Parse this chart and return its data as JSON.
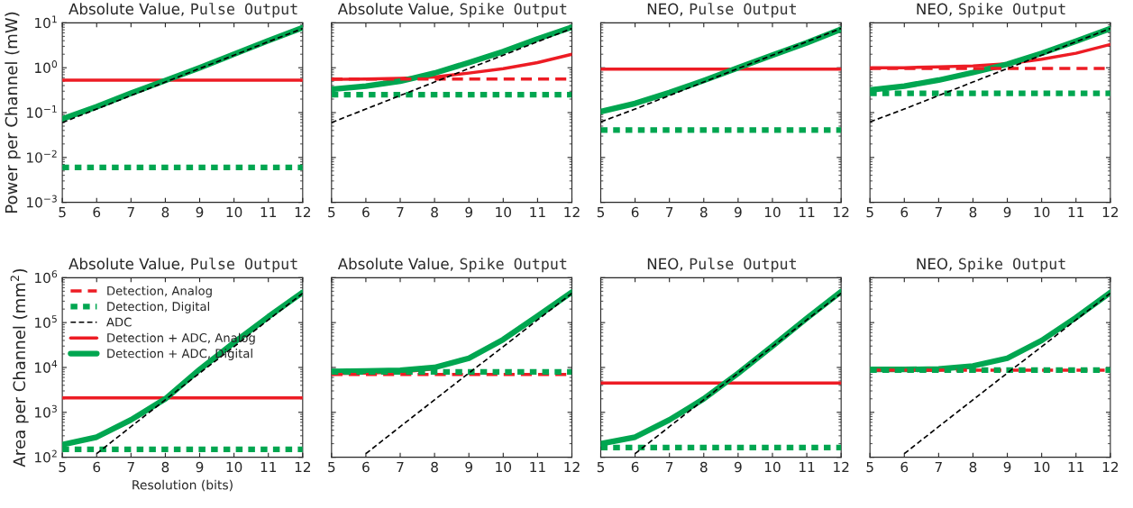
{
  "chart_data": [
    {
      "type": "line",
      "title": "Absolute Value,",
      "subtitle": "Pulse Output",
      "ylabel": "Power per Channel (mW)",
      "x": [
        5,
        6,
        7,
        8,
        9,
        10,
        11,
        12
      ],
      "log": "y",
      "xlim": [
        5,
        12
      ],
      "xticks": [
        5,
        6,
        7,
        8,
        9,
        10,
        11,
        12
      ],
      "ylim": [
        0.001,
        10
      ],
      "yticks": [
        {
          "value": 0.001,
          "label": "10$^{−3}$"
        },
        {
          "value": 0.01,
          "label": "10$^{−2}$"
        },
        {
          "value": 0.1,
          "label": "10$^{−1}$"
        },
        {
          "value": 1,
          "label": "10$^{0}$"
        },
        {
          "value": 10,
          "label": "10$^{1}$"
        }
      ],
      "legend": false,
      "series": [
        {
          "color": "#ed1c24",
          "line_style": "dashed",
          "values": [
            null,
            null,
            null,
            null,
            null,
            null,
            null,
            null
          ]
        },
        {
          "color": "#00a650",
          "line_style": "dotted",
          "values": [
            0.006,
            0.006,
            0.006,
            0.006,
            0.006,
            0.006,
            0.006,
            0.006
          ]
        },
        {
          "color": "#000000",
          "line_style": "dashed",
          "values": [
            0.06,
            0.12,
            0.24,
            0.48,
            0.96,
            1.9,
            3.8,
            7.5
          ]
        },
        {
          "color": "#ed1c24",
          "line_style": "solid",
          "values": [
            0.53,
            0.53,
            0.53,
            0.53,
            0.53,
            0.53,
            0.53,
            0.53
          ]
        },
        {
          "color": "#00a650",
          "line_style": "solid",
          "values": [
            0.072,
            0.135,
            0.27,
            0.52,
            1.0,
            2.0,
            4.0,
            7.8
          ]
        }
      ]
    },
    {
      "type": "line",
      "title": "Absolute Value,",
      "subtitle": "Spike Output",
      "x": [
        5,
        6,
        7,
        8,
        9,
        10,
        11,
        12
      ],
      "log": "y",
      "xlim": [
        5,
        12
      ],
      "xticks": [
        5,
        6,
        7,
        8,
        9,
        10,
        11,
        12
      ],
      "ylim": [
        0.001,
        10
      ],
      "yticks": [
        0.001,
        0.01,
        0.1,
        1,
        10
      ],
      "tick_labels": "x",
      "legend": false,
      "series": [
        {
          "color": "#ed1c24",
          "line_style": "dashed",
          "values": [
            0.56,
            0.56,
            0.56,
            0.56,
            0.56,
            0.56,
            0.56,
            0.56
          ]
        },
        {
          "color": "#00a650",
          "line_style": "dotted",
          "values": [
            0.25,
            0.25,
            0.25,
            0.25,
            0.25,
            0.25,
            0.25,
            0.25
          ]
        },
        {
          "color": "#000000",
          "line_style": "dashed",
          "values": [
            0.06,
            0.12,
            0.24,
            0.48,
            0.96,
            1.9,
            3.8,
            7.5
          ]
        },
        {
          "color": "#ed1c24",
          "line_style": "solid",
          "values": [
            0.55,
            0.56,
            0.58,
            0.62,
            0.76,
            0.95,
            1.3,
            2.0
          ]
        },
        {
          "color": "#00a650",
          "line_style": "solid",
          "values": [
            0.33,
            0.39,
            0.5,
            0.76,
            1.3,
            2.3,
            4.4,
            8.0
          ]
        }
      ]
    },
    {
      "type": "line",
      "title": "NEO,",
      "subtitle": "Pulse Output",
      "x": [
        5,
        6,
        7,
        8,
        9,
        10,
        11,
        12
      ],
      "log": "y",
      "xlim": [
        5,
        12
      ],
      "xticks": [
        5,
        6,
        7,
        8,
        9,
        10,
        11,
        12
      ],
      "ylim": [
        0.001,
        10
      ],
      "yticks": [
        0.001,
        0.01,
        0.1,
        1,
        10
      ],
      "tick_labels": "x",
      "legend": false,
      "series": [
        {
          "color": "#ed1c24",
          "line_style": "dashed",
          "values": [
            null,
            null,
            null,
            null,
            null,
            null,
            null,
            null
          ]
        },
        {
          "color": "#00a650",
          "line_style": "dotted",
          "values": [
            0.041,
            0.041,
            0.041,
            0.041,
            0.041,
            0.041,
            0.041,
            0.041
          ]
        },
        {
          "color": "#000000",
          "line_style": "dashed",
          "values": [
            0.062,
            0.12,
            0.24,
            0.48,
            0.96,
            1.9,
            3.8,
            7.5
          ]
        },
        {
          "color": "#ed1c24",
          "line_style": "solid",
          "values": [
            0.93,
            0.93,
            0.93,
            0.93,
            0.93,
            0.93,
            0.93,
            0.93
          ]
        },
        {
          "color": "#00a650",
          "line_style": "solid",
          "values": [
            0.105,
            0.16,
            0.28,
            0.52,
            1.0,
            1.9,
            3.6,
            7.2
          ]
        }
      ]
    },
    {
      "type": "line",
      "title": "NEO,",
      "subtitle": "Spike Output",
      "x": [
        5,
        6,
        7,
        8,
        9,
        10,
        11,
        12
      ],
      "log": "y",
      "xlim": [
        5,
        12
      ],
      "xticks": [
        5,
        6,
        7,
        8,
        9,
        10,
        11,
        12
      ],
      "ylim": [
        0.001,
        10
      ],
      "yticks": [
        0.001,
        0.01,
        0.1,
        1,
        10
      ],
      "tick_labels": "x",
      "legend": false,
      "series": [
        {
          "color": "#ed1c24",
          "line_style": "dashed",
          "values": [
            0.96,
            0.96,
            0.96,
            0.96,
            0.96,
            0.96,
            0.96,
            0.96
          ]
        },
        {
          "color": "#00a650",
          "line_style": "dotted",
          "values": [
            0.27,
            0.27,
            0.27,
            0.27,
            0.27,
            0.27,
            0.27,
            0.27
          ]
        },
        {
          "color": "#000000",
          "line_style": "dashed",
          "values": [
            0.062,
            0.12,
            0.24,
            0.48,
            0.96,
            1.9,
            3.8,
            7.5
          ]
        },
        {
          "color": "#ed1c24",
          "line_style": "solid",
          "values": [
            1.0,
            1.0,
            1.05,
            1.1,
            1.23,
            1.55,
            2.1,
            3.3
          ]
        },
        {
          "color": "#00a650",
          "line_style": "solid",
          "values": [
            0.32,
            0.39,
            0.53,
            0.78,
            1.2,
            2.1,
            3.9,
            7.5
          ]
        }
      ]
    },
    {
      "type": "line",
      "title": "Absolute Value,",
      "subtitle": "Pulse Output",
      "xlabel": "Resolution (bits)",
      "ylabel": "Area per Channel (mm$^{2}$)",
      "x": [
        5,
        6,
        7,
        8,
        9,
        10,
        11,
        12
      ],
      "log": "y",
      "xlim": [
        5,
        12
      ],
      "xticks": [
        5,
        6,
        7,
        8,
        9,
        10,
        11,
        12
      ],
      "ylim": [
        100,
        1000000
      ],
      "yticks": [
        {
          "value": 100,
          "label": "10$^{2}$"
        },
        {
          "value": 1000,
          "label": "10$^{3}$"
        },
        {
          "value": 10000,
          "label": "10$^{4}$"
        },
        {
          "value": 100000,
          "label": "10$^{5}$"
        },
        {
          "value": 1000000,
          "label": "10$^{6}$"
        }
      ],
      "legend": "top left",
      "series": [
        {
          "name": "Detection, Analog",
          "color": "#ed1c24",
          "line_style": "dashed",
          "values": [
            null,
            null,
            null,
            null,
            null,
            null,
            null,
            null
          ]
        },
        {
          "name": "Detection, Digital",
          "color": "#00a650",
          "line_style": "dotted",
          "values": [
            150,
            150,
            150,
            150,
            150,
            150,
            150,
            150
          ]
        },
        {
          "name": "ADC",
          "color": "#000000",
          "line_style": "dashed",
          "x": [
            6,
            7,
            8,
            9,
            10,
            11,
            12
          ],
          "values": [
            120,
            480,
            1900,
            7500,
            29000,
            115000,
            450000
          ]
        },
        {
          "name": "Detection + ADC, Analog",
          "color": "#ed1c24",
          "line_style": "solid",
          "values": [
            2100,
            2100,
            2100,
            2100,
            2100,
            2100,
            2100,
            2100
          ]
        },
        {
          "name": "Detection + ADC, Digital",
          "color": "#00a650",
          "line_style": "solid",
          "values": [
            190,
            280,
            680,
            2000,
            9000,
            36000,
            135000,
            470000
          ]
        }
      ]
    },
    {
      "type": "line",
      "title": "Absolute Value,",
      "subtitle": "Spike Output",
      "x": [
        5,
        6,
        7,
        8,
        9,
        10,
        11,
        12
      ],
      "log": "y",
      "xlim": [
        5,
        12
      ],
      "xticks": [
        5,
        6,
        7,
        8,
        9,
        10,
        11,
        12
      ],
      "ylim": [
        100,
        1000000
      ],
      "yticks": [
        100,
        1000,
        10000,
        100000,
        1000000
      ],
      "tick_labels": "x",
      "legend": false,
      "series": [
        {
          "color": "#ed1c24",
          "line_style": "dashed",
          "values": [
            7000,
            7000,
            7000,
            7000,
            7000,
            7000,
            7000,
            7000
          ]
        },
        {
          "color": "#00a650",
          "line_style": "dotted",
          "values": [
            8000,
            8000,
            8000,
            8000,
            8000,
            8000,
            8000,
            8000
          ]
        },
        {
          "color": "#000000",
          "line_style": "dashed",
          "x": [
            6,
            7,
            8,
            9,
            10,
            11,
            12
          ],
          "values": [
            120,
            480,
            1900,
            7500,
            29000,
            115000,
            450000
          ]
        },
        {
          "color": "#ed1c24",
          "line_style": "solid",
          "values": [
            7300,
            7500,
            7900,
            9300,
            null,
            null,
            null,
            null
          ]
        },
        {
          "color": "#00a650",
          "line_style": "solid",
          "values": [
            8200,
            8300,
            8600,
            10000,
            16000,
            42000,
            140000,
            480000
          ]
        }
      ]
    },
    {
      "type": "line",
      "title": "NEO,",
      "subtitle": "Pulse Output",
      "x": [
        5,
        6,
        7,
        8,
        9,
        10,
        11,
        12
      ],
      "log": "y",
      "xlim": [
        5,
        12
      ],
      "xticks": [
        5,
        6,
        7,
        8,
        9,
        10,
        11,
        12
      ],
      "ylim": [
        100,
        1000000
      ],
      "yticks": [
        100,
        1000,
        10000,
        100000,
        1000000
      ],
      "tick_labels": "x",
      "legend": false,
      "series": [
        {
          "color": "#ed1c24",
          "line_style": "dashed",
          "values": [
            null,
            null,
            null,
            null,
            null,
            null,
            null,
            null
          ]
        },
        {
          "color": "#00a650",
          "line_style": "dotted",
          "values": [
            165,
            165,
            165,
            165,
            165,
            165,
            165,
            165
          ]
        },
        {
          "color": "#000000",
          "line_style": "dashed",
          "x": [
            6,
            7,
            8,
            9,
            10,
            11,
            12
          ],
          "values": [
            120,
            480,
            1900,
            7500,
            29000,
            115000,
            450000
          ]
        },
        {
          "color": "#ed1c24",
          "line_style": "solid",
          "values": [
            4500,
            4500,
            4500,
            4500,
            4500,
            4500,
            4500,
            4500
          ]
        },
        {
          "color": "#00a650",
          "line_style": "solid",
          "values": [
            200,
            280,
            680,
            2000,
            7400,
            30000,
            125000,
            490000
          ]
        }
      ]
    },
    {
      "type": "line",
      "title": "NEO,",
      "subtitle": "Spike Output",
      "x": [
        5,
        6,
        7,
        8,
        9,
        10,
        11,
        12
      ],
      "log": "y",
      "xlim": [
        5,
        12
      ],
      "xticks": [
        5,
        6,
        7,
        8,
        9,
        10,
        11,
        12
      ],
      "ylim": [
        100,
        1000000
      ],
      "yticks": [
        100,
        1000,
        10000,
        100000,
        1000000
      ],
      "tick_labels": "x",
      "legend": false,
      "series": [
        {
          "color": "#ed1c24",
          "line_style": "dashed",
          "values": [
            8700,
            8700,
            8700,
            8700,
            8700,
            8700,
            8700,
            8700
          ]
        },
        {
          "color": "#00a650",
          "line_style": "dotted",
          "values": [
            8700,
            8700,
            8700,
            8700,
            8700,
            8700,
            8700,
            8700
          ]
        },
        {
          "color": "#000000",
          "line_style": "dashed",
          "x": [
            6,
            7,
            8,
            9,
            10,
            11,
            12
          ],
          "values": [
            120,
            480,
            1900,
            7500,
            29000,
            115000,
            450000
          ]
        },
        {
          "color": "#ed1c24",
          "line_style": "solid",
          "values": [
            null,
            null,
            null,
            null,
            null,
            null,
            null,
            null
          ]
        },
        {
          "color": "#00a650",
          "line_style": "solid",
          "values": [
            9000,
            9000,
            9300,
            10800,
            16000,
            40000,
            130000,
            470000
          ]
        }
      ]
    }
  ]
}
